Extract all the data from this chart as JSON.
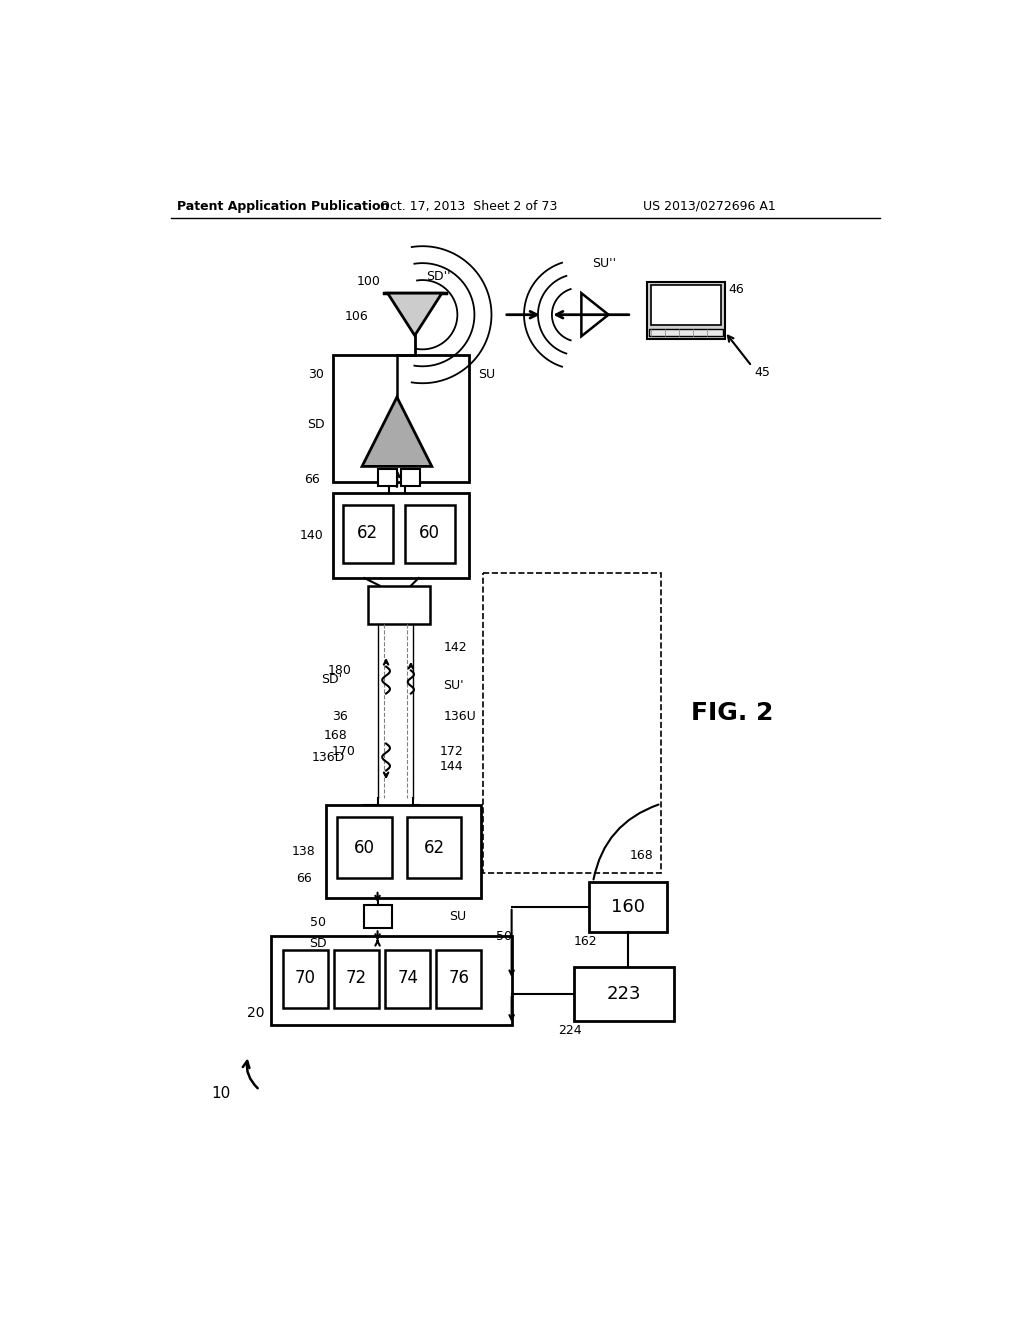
{
  "header_left": "Patent Application Publication",
  "header_center": "Oct. 17, 2013  Sheet 2 of 73",
  "header_right": "US 2013/0272696 A1",
  "fig_label": "FIG. 2",
  "bg_color": "#ffffff",
  "line_color": "#000000"
}
